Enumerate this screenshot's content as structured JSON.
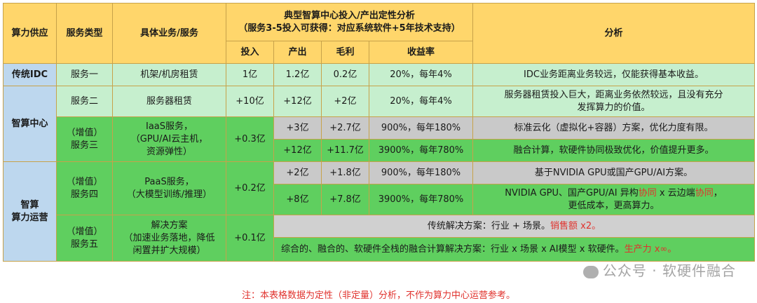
{
  "header": {
    "supply": "算力供应",
    "service_type": "服务类型",
    "business": "具体业务/服务",
    "group_title_line1": "典型智算中心投入/产出定性分析",
    "group_title_line2": "（服务3-5投入可获得：对应系统软件+5年技术支持）",
    "invest": "投入",
    "output": "产出",
    "margin": "毛利",
    "yield": "收益率",
    "analysis": "分析"
  },
  "rows": {
    "idc": {
      "supply": "传统IDC",
      "service": "服务一",
      "business": "机架/机房租赁",
      "invest": "1亿",
      "output": "1.2亿",
      "margin": "0.2亿",
      "yield": "20%，每年4%",
      "analysis": "IDC业务距离业务较远，仅能获得基本收益。"
    },
    "zhisuan": {
      "supply": "智算中心",
      "s2": {
        "service": "服务二",
        "business": "服务器租赁",
        "invest": "+10亿",
        "output": "+12亿",
        "margin": "+2亿",
        "yield": "20%，每年4%",
        "analysis_line1": "服务器租赁投入巨大，距离业务依然较远，且没有充分",
        "analysis_line2": "发挥算力的价值。"
      },
      "s3": {
        "service_line1": "（增值）",
        "service_line2": "服务三",
        "business_line1": "IaaS服务，",
        "business_line2": "（GPU/AI云主机，",
        "business_line3": "资源弹性）",
        "invest": "+0.3亿",
        "a": {
          "output": "+3亿",
          "margin": "+2.7亿",
          "yield": "900%，每年180%",
          "analysis": "标准云化（虚拟化+容器）方案，优化力度有限。"
        },
        "b": {
          "output": "+12亿",
          "margin": "+11.7亿",
          "yield": "3900%，每年780%",
          "analysis": "融合计算，软硬件协同极致优化，价值提升更多。"
        }
      }
    },
    "yunying": {
      "supply_line1": "智算",
      "supply_line2": "算力运营",
      "s4": {
        "service_line1": "（增值）",
        "service_line2": "服务四",
        "business_line1": "PaaS服务，",
        "business_line2": "（大模型训练/推理）",
        "invest": "+0.2亿",
        "a": {
          "output": "+2亿",
          "margin": "+1.8亿",
          "yield": "900%，每年180%",
          "analysis": "基于NVIDIA GPU或国产GPU/AI方案。"
        },
        "b": {
          "output": "+8亿",
          "margin": "+7.8亿",
          "yield": "3900%，每年780%",
          "analysis_l1_a": "NVIDIA GPU、国产GPU/AI 异构",
          "analysis_l1_b": "协同",
          "analysis_l1_c": " x 云边端",
          "analysis_l1_d": "协同",
          "analysis_l1_e": "，",
          "analysis_line2": "更低成本，更高算力。"
        }
      },
      "s5": {
        "service_line1": "（增值）",
        "service_line2": "服务五",
        "business_line1": "解决方案",
        "business_line2": "（加速业务落地，降低",
        "business_line3": "闲置并扩大规模）",
        "invest": "+0.1亿",
        "a": {
          "text": "传统解决方案：行业 + 场景。",
          "red": "销售额 x2。"
        },
        "b": {
          "text": "综合的、融合的、软硬件全栈的融合计算解决方案：行业 x 场景 x AI模型 x 软硬件。",
          "red": "生产力 x∞。"
        }
      }
    }
  },
  "watermark": "公众号 · 软硬件融合",
  "footnote": "注：本表格数据为定性（非定量）分析，不作为算力中心运营参考。",
  "colors": {
    "header_yellow": "#ffd66b",
    "supply_blue": "#bdd7ee",
    "light_green": "#c6efce",
    "mid_green": "#5fcf5f",
    "gray": "#c9c9c9",
    "red": "#e0322d"
  }
}
